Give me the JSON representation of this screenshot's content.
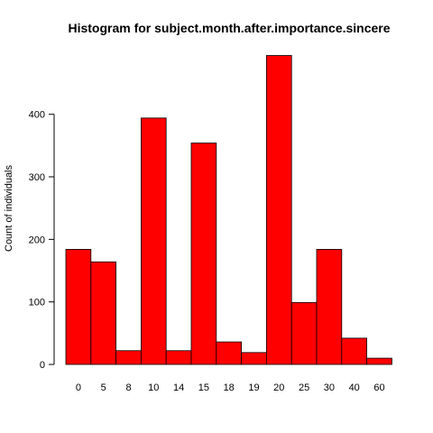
{
  "chart_data": {
    "type": "bar",
    "title": "Histogram for subject.month.after.importance.sincere",
    "xlabel": "",
    "ylabel": "Count of individuals",
    "categories": [
      "0",
      "5",
      "8",
      "10",
      "14",
      "15",
      "18",
      "19",
      "20",
      "25",
      "30",
      "40",
      "60"
    ],
    "values": [
      184,
      164,
      22,
      394,
      22,
      354,
      36,
      19,
      494,
      99,
      184,
      42,
      10
    ],
    "ylim": [
      0,
      500
    ],
    "yticks": [
      "0",
      "100",
      "200",
      "300",
      "400"
    ],
    "bar_color": "#ff0000",
    "bar_border": "#000000",
    "grid": false,
    "legend": "none"
  }
}
